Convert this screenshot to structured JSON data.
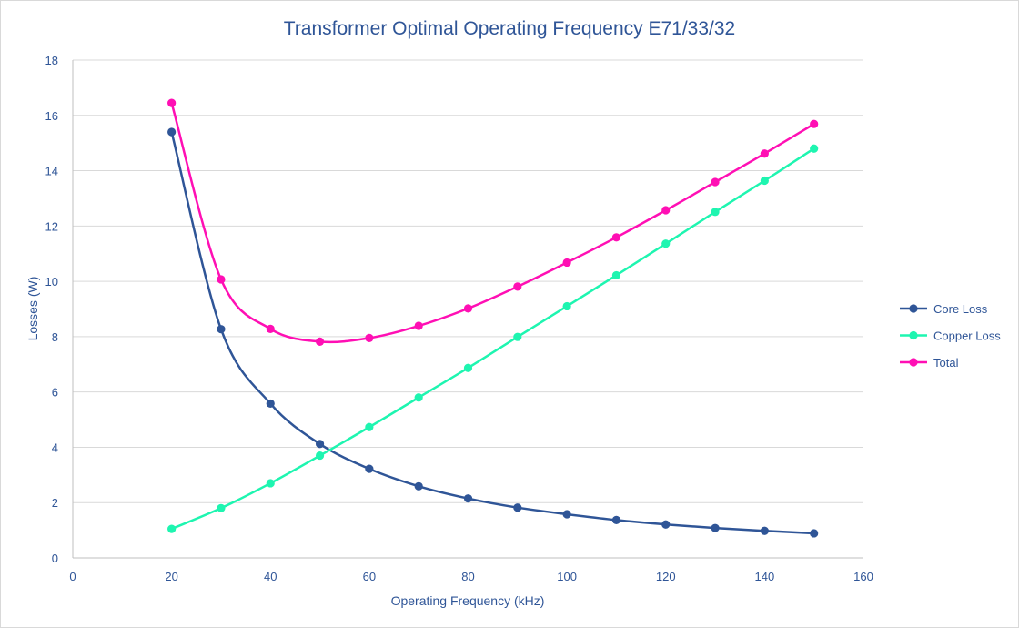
{
  "chart_data": {
    "type": "line",
    "title": "Transformer Optimal Operating Frequency E71/33/32",
    "xlabel": "Operating Frequency (kHz)",
    "ylabel": "Losses (W)",
    "xlim": [
      0,
      160
    ],
    "ylim": [
      0,
      18
    ],
    "xticks": [
      0,
      20,
      40,
      60,
      80,
      100,
      120,
      140,
      160
    ],
    "yticks": [
      0,
      2,
      4,
      6,
      8,
      10,
      12,
      14,
      16,
      18
    ],
    "grid": "horizontal",
    "legend": "right",
    "smooth": true,
    "x": [
      20,
      30,
      40,
      50,
      60,
      70,
      80,
      90,
      100,
      110,
      120,
      130,
      140,
      150
    ],
    "series": [
      {
        "name": "Core Loss",
        "color": "#2f5597",
        "values": [
          15.4,
          8.27,
          5.58,
          4.12,
          3.22,
          2.59,
          2.15,
          1.82,
          1.58,
          1.37,
          1.21,
          1.08,
          0.98,
          0.89
        ]
      },
      {
        "name": "Copper Loss",
        "color": "#1ef5b0",
        "values": [
          1.05,
          1.8,
          2.7,
          3.7,
          4.73,
          5.8,
          6.87,
          7.99,
          9.1,
          10.22,
          11.36,
          12.51,
          13.64,
          14.8
        ]
      },
      {
        "name": "Total",
        "color": "#ff0fb4",
        "values": [
          16.45,
          10.07,
          8.28,
          7.82,
          7.95,
          8.39,
          9.02,
          9.81,
          10.68,
          11.59,
          12.57,
          13.59,
          14.62,
          15.69
        ]
      }
    ]
  }
}
